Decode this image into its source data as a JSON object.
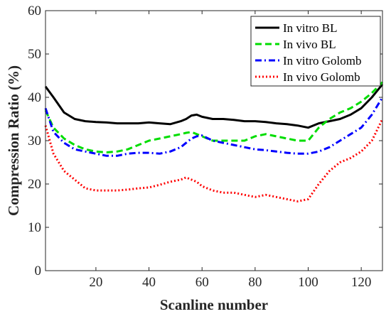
{
  "chart_data": {
    "type": "line",
    "title": "",
    "xlabel": "Scanline number",
    "ylabel": "Compression Ratio (%)",
    "xlim": [
      1,
      128
    ],
    "ylim": [
      0,
      60
    ],
    "xticks": [
      20,
      40,
      60,
      80,
      100,
      120
    ],
    "yticks": [
      0,
      10,
      20,
      30,
      40,
      50,
      60
    ],
    "grid": false,
    "legend_position": "top-right",
    "x": [
      1,
      4,
      8,
      12,
      16,
      20,
      24,
      28,
      32,
      36,
      40,
      44,
      48,
      52,
      54,
      56,
      58,
      60,
      64,
      68,
      72,
      76,
      80,
      84,
      88,
      92,
      96,
      100,
      104,
      108,
      112,
      116,
      120,
      124,
      128
    ],
    "series": [
      {
        "name": "In vitro BL",
        "color": "#000000",
        "dash": "solid",
        "values": [
          42.5,
          40.0,
          36.5,
          35.0,
          34.5,
          34.3,
          34.2,
          34.0,
          34.0,
          34.0,
          34.2,
          34.0,
          33.8,
          34.5,
          35.0,
          35.8,
          36.0,
          35.5,
          35.0,
          35.0,
          34.8,
          34.5,
          34.5,
          34.3,
          34.0,
          33.8,
          33.5,
          33.0,
          34.0,
          34.5,
          35.0,
          36.0,
          37.5,
          40.0,
          43.0
        ]
      },
      {
        "name": "In vivo BL",
        "color": "#00dd00",
        "dash": "dashed",
        "values": [
          37.0,
          33.0,
          30.5,
          29.0,
          28.0,
          27.5,
          27.3,
          27.5,
          28.0,
          29.0,
          30.0,
          30.5,
          31.0,
          31.5,
          31.8,
          32.0,
          31.5,
          31.0,
          30.0,
          30.0,
          30.0,
          30.0,
          31.0,
          31.5,
          31.0,
          30.5,
          30.0,
          30.0,
          33.0,
          35.0,
          36.5,
          37.5,
          39.0,
          41.0,
          43.5
        ]
      },
      {
        "name": "In vitro Golomb",
        "color": "#0000ff",
        "dash": "dashdot",
        "values": [
          37.5,
          32.0,
          29.5,
          28.0,
          27.5,
          27.0,
          26.5,
          26.5,
          27.0,
          27.2,
          27.2,
          27.0,
          27.5,
          28.5,
          29.5,
          30.5,
          31.0,
          31.2,
          30.0,
          29.5,
          29.0,
          28.5,
          28.0,
          27.8,
          27.5,
          27.2,
          27.0,
          27.0,
          27.5,
          28.5,
          30.0,
          31.5,
          33.0,
          36.0,
          40.0
        ]
      },
      {
        "name": "In vivo Golomb",
        "color": "#ff0000",
        "dash": "dotted",
        "values": [
          33.5,
          27.0,
          23.0,
          21.0,
          19.0,
          18.5,
          18.5,
          18.5,
          18.7,
          19.0,
          19.2,
          19.8,
          20.5,
          21.0,
          21.5,
          21.0,
          20.5,
          19.5,
          18.5,
          18.0,
          18.0,
          17.5,
          17.0,
          17.5,
          17.0,
          16.5,
          16.0,
          16.5,
          20.0,
          23.0,
          25.0,
          26.0,
          27.5,
          30.0,
          35.0
        ]
      }
    ]
  }
}
